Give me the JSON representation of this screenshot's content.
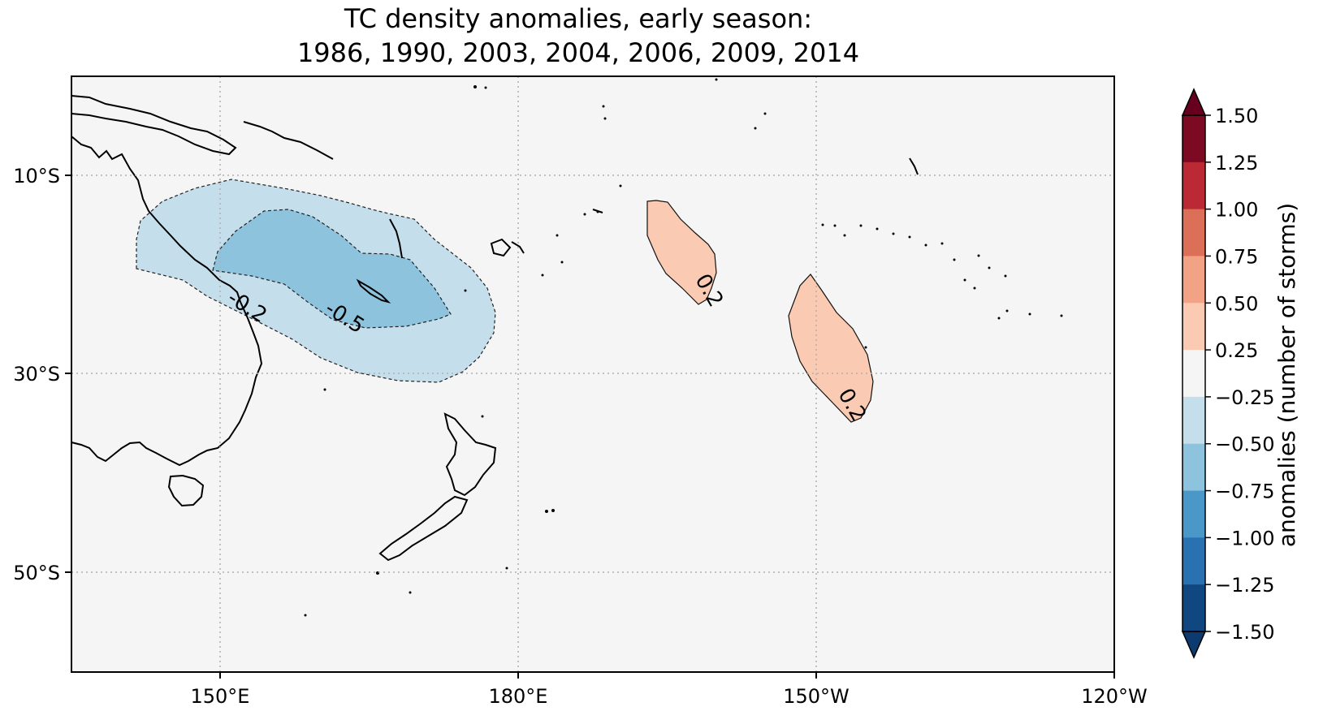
{
  "title_line1": "TC density anomalies, early season:",
  "title_line2": "1986, 1990, 2003, 2004, 2006, 2009, 2014",
  "colorbar_label": "anomalies (number of storms)",
  "lon_ticks": [
    "150°E",
    "180°E",
    "150°W",
    "120°W"
  ],
  "lat_ticks": [
    "10°S",
    "30°S",
    "50°S"
  ],
  "contour_labels": [
    "-0.2",
    "-0.5",
    "0.2",
    "0.2"
  ],
  "colorbar_ticks": [
    "1.50",
    "1.25",
    "1.00",
    "0.75",
    "0.50",
    "0.25",
    "−0.25",
    "−0.50",
    "−0.75",
    "−1.00",
    "−1.25",
    "−1.50"
  ],
  "colorbar_colors": [
    "#7c0a22",
    "#bb2a34",
    "#dc6f58",
    "#f2a385",
    "#facbb2",
    "#f5f5f5",
    "#c4deec",
    "#8ec3de",
    "#4a98c8",
    "#2a71b2",
    "#114781"
  ],
  "colorbar_extend_colors": {
    "top": "#67001f",
    "bottom": "#0d3b70"
  },
  "map_colors": {
    "background": "#f5f5f5",
    "neg_0_2": "#c4deec",
    "neg_0_5": "#8ec3de",
    "pos_0_2": "#facbb2",
    "coast": "#000000",
    "grid": "#b0b0b0"
  }
}
